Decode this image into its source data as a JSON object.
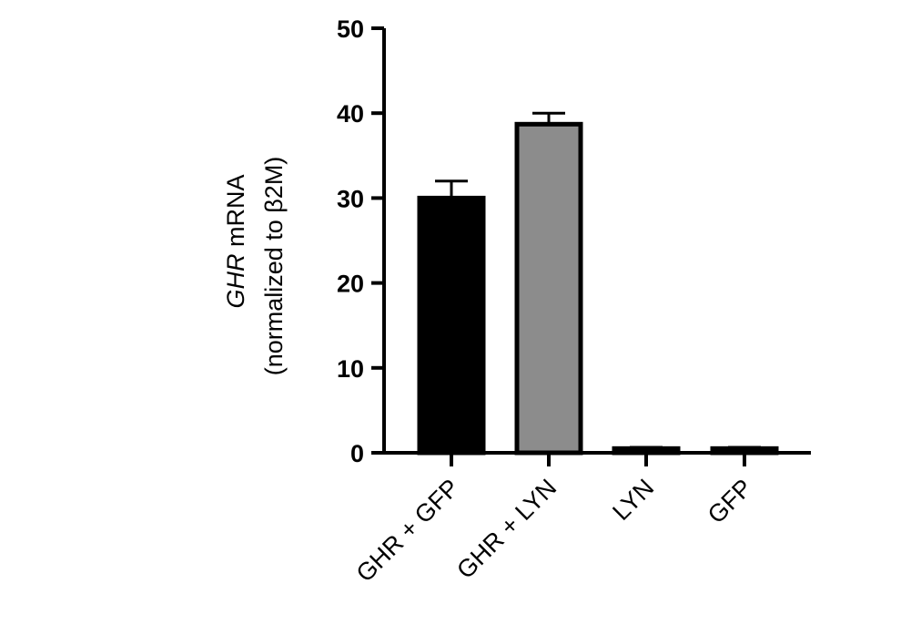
{
  "chart_data": {
    "type": "bar",
    "categories": [
      "GHR + GFP",
      "GHR + LYN",
      "LYN",
      "GFP"
    ],
    "values": [
      30.0,
      38.7,
      0.5,
      0.5
    ],
    "errors": [
      2.0,
      1.3,
      0.15,
      0.15
    ],
    "bar_fill": [
      "#000000",
      "#8c8c8c",
      "#000000",
      "#000000"
    ],
    "bar_edge": "#000000",
    "ylabel_italic": "GHR",
    "ylabel_rest": " mRNA",
    "ylabel_line2": "(normalized to β2M)",
    "ylim": [
      0,
      50
    ],
    "yticks": [
      0,
      10,
      20,
      30,
      40,
      50
    ],
    "ytick_labels": [
      "0",
      "10",
      "20",
      "30",
      "40",
      "50"
    ],
    "grid": false,
    "legend": "none"
  }
}
